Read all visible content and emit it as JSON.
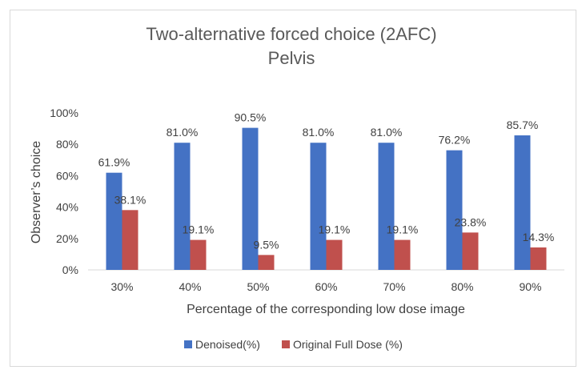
{
  "chart_data": {
    "type": "bar",
    "title": "Two-alternative forced choice (2AFC)",
    "subtitle": "Pelvis",
    "xlabel": "Percentage of the corresponding low dose image",
    "ylabel": "Observer’s choice",
    "categories": [
      "30%",
      "40%",
      "50%",
      "60%",
      "70%",
      "80%",
      "90%"
    ],
    "yticks": [
      "0%",
      "20%",
      "40%",
      "60%",
      "80%",
      "100%"
    ],
    "ylim": [
      0,
      100
    ],
    "grid": false,
    "legend_position": "bottom",
    "series": [
      {
        "name": "Denoised(%)",
        "color": "#4472c4",
        "values": [
          61.9,
          81.0,
          90.5,
          81.0,
          81.0,
          76.2,
          85.7
        ],
        "labels": [
          "61.9%",
          "81.0%",
          "90.5%",
          "81.0%",
          "81.0%",
          "76.2%",
          "85.7%"
        ]
      },
      {
        "name": "Original Full Dose (%)",
        "color": "#c0504d",
        "values": [
          38.1,
          19.1,
          9.5,
          19.1,
          19.1,
          23.8,
          14.3
        ],
        "labels": [
          "38.1%",
          "19.1%",
          "9.5%",
          "19.1%",
          "19.1%",
          "23.8%",
          "14.3%"
        ]
      }
    ]
  }
}
